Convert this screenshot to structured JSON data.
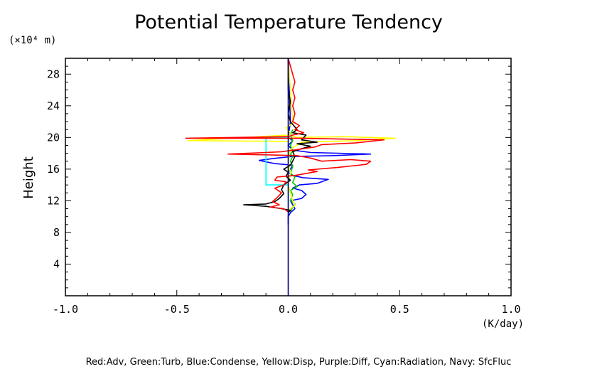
{
  "chart_data": {
    "type": "line",
    "title": "Potential Temperature Tendency",
    "xlabel": "(K/day)",
    "ylabel": "Height",
    "y_unit": "(×10⁴ m)",
    "xlim": [
      -1.0,
      1.0
    ],
    "ylim": [
      0,
      30
    ],
    "x_ticks": [
      -1.0,
      -0.5,
      0.0,
      0.5,
      1.0
    ],
    "x_tick_labels": [
      "-1.0",
      "-0.5",
      "0.0",
      "0.5",
      "1.0"
    ],
    "y_ticks": [
      4,
      8,
      12,
      16,
      20,
      24,
      28
    ],
    "y_tick_labels": [
      "4",
      "8",
      "12",
      "16",
      "20",
      "24",
      "28"
    ],
    "legend_text": "Red:Adv, Green:Turb, Blue:Condense, Yellow:Disp, Purple:Diff, Cyan:Radiation, Navy: SfcFluc",
    "grid": false,
    "series": [
      {
        "color": "#0000ff",
        "points": [
          [
            0,
            9
          ],
          [
            0,
            10
          ],
          [
            0.01,
            10.5
          ],
          [
            0.03,
            11
          ],
          [
            0.02,
            11.5
          ],
          [
            0.01,
            12
          ],
          [
            0.06,
            12.3
          ],
          [
            0.08,
            12.8
          ],
          [
            0.06,
            13.3
          ],
          [
            0.02,
            13.6
          ],
          [
            0.05,
            14
          ],
          [
            0.13,
            14.2
          ],
          [
            0.18,
            14.7
          ],
          [
            0.07,
            14.9
          ],
          [
            0.02,
            15.2
          ],
          [
            0,
            15.6
          ],
          [
            0.01,
            16
          ],
          [
            0.02,
            16.5
          ],
          [
            -0.06,
            16.7
          ],
          [
            -0.13,
            17.1
          ],
          [
            -0.05,
            17.4
          ],
          [
            0.02,
            17.6
          ],
          [
            0.2,
            17.7
          ],
          [
            0.37,
            17.9
          ],
          [
            0.1,
            18.1
          ],
          [
            0.02,
            18.4
          ],
          [
            0,
            19
          ],
          [
            0.02,
            19.6
          ],
          [
            0,
            20
          ],
          [
            0.01,
            22
          ],
          [
            0,
            30
          ]
        ]
      },
      {
        "color": "#00cd00",
        "points": [
          [
            0.01,
            10.6
          ],
          [
            0.02,
            11.2
          ],
          [
            0.03,
            11.6
          ],
          [
            0.01,
            12
          ],
          [
            0.02,
            12.8
          ],
          [
            0.01,
            13.3
          ],
          [
            0.04,
            13.8
          ],
          [
            0.02,
            14.3
          ],
          [
            0.03,
            15
          ],
          [
            0.01,
            15.5
          ],
          [
            0.02,
            16.3
          ],
          [
            0.01,
            17
          ],
          [
            0.02,
            17.6
          ],
          [
            0.01,
            17.9
          ],
          [
            0.02,
            18.3
          ],
          [
            0.01,
            19
          ],
          [
            0.02,
            19.6
          ],
          [
            0.01,
            20.3
          ],
          [
            0.02,
            21
          ]
        ]
      },
      {
        "color": "#ffff00",
        "points": [
          [
            0,
            10.6
          ],
          [
            0.01,
            11
          ],
          [
            0.03,
            11.4
          ],
          [
            0.02,
            12
          ],
          [
            0.01,
            13
          ],
          [
            0,
            14
          ],
          [
            0.01,
            15.5
          ],
          [
            0,
            17
          ],
          [
            0.01,
            18.5
          ],
          [
            0.06,
            19.4
          ],
          [
            0.3,
            19.6
          ],
          [
            0.48,
            19.9
          ],
          [
            0.25,
            20.1
          ],
          [
            0.04,
            20
          ],
          [
            0,
            20.3
          ],
          [
            -0.45,
            19.6
          ],
          [
            0,
            19.5
          ],
          [
            0.01,
            20.6
          ],
          [
            -0.01,
            21.2
          ],
          [
            0.02,
            21.8
          ],
          [
            0,
            30
          ]
        ]
      },
      {
        "color": "#00ffff",
        "points": [
          [
            0,
            14
          ],
          [
            -0.1,
            14
          ],
          [
            -0.1,
            20
          ],
          [
            -0.03,
            20
          ],
          [
            0,
            20
          ]
        ]
      },
      {
        "color": "#000000",
        "points": [
          [
            0,
            10.5
          ],
          [
            0.01,
            10.8
          ],
          [
            -0.03,
            11
          ],
          [
            -0.1,
            11.3
          ],
          [
            -0.2,
            11.5
          ],
          [
            -0.1,
            11.6
          ],
          [
            -0.06,
            11.9
          ],
          [
            -0.04,
            12.3
          ],
          [
            -0.02,
            12.9
          ],
          [
            -0.03,
            13.4
          ],
          [
            -0.02,
            14
          ],
          [
            0.01,
            14.6
          ],
          [
            -0.01,
            15.1
          ],
          [
            0,
            15.6
          ],
          [
            -0.02,
            16
          ],
          [
            0.01,
            16.5
          ],
          [
            0.02,
            17
          ],
          [
            0.03,
            17.6
          ],
          [
            0.02,
            18.2
          ],
          [
            0.05,
            18.5
          ],
          [
            0.1,
            18.9
          ],
          [
            0.04,
            19.2
          ],
          [
            0.13,
            19.4
          ],
          [
            0.06,
            19.7
          ],
          [
            0.08,
            20.3
          ],
          [
            0.02,
            20.6
          ],
          [
            0.04,
            21
          ],
          [
            0.01,
            22
          ],
          [
            0,
            23
          ],
          [
            0.01,
            24.5
          ],
          [
            0,
            26
          ],
          [
            0,
            30
          ]
        ]
      },
      {
        "color": "#ff0000",
        "points": [
          [
            0,
            10.6
          ],
          [
            -0.02,
            11
          ],
          [
            -0.08,
            11.2
          ],
          [
            -0.04,
            11.5
          ],
          [
            -0.07,
            11.9
          ],
          [
            -0.05,
            12.4
          ],
          [
            -0.03,
            13
          ],
          [
            -0.06,
            13.6
          ],
          [
            -0.02,
            14
          ],
          [
            -0.01,
            14.4
          ],
          [
            -0.06,
            14.6
          ],
          [
            -0.05,
            15
          ],
          [
            0.03,
            15.2
          ],
          [
            0.13,
            15.7
          ],
          [
            0.09,
            15.9
          ],
          [
            0.22,
            16.2
          ],
          [
            0.35,
            16.6
          ],
          [
            0.37,
            17
          ],
          [
            0.28,
            17.2
          ],
          [
            0.15,
            17
          ],
          [
            0.1,
            17.4
          ],
          [
            0.04,
            17.7
          ],
          [
            -0.1,
            17.8
          ],
          [
            -0.27,
            17.9
          ],
          [
            -0.1,
            18.1
          ],
          [
            -0.03,
            18.2
          ],
          [
            0.05,
            18.5
          ],
          [
            0.12,
            18.8
          ],
          [
            0.15,
            19.1
          ],
          [
            0.3,
            19.3
          ],
          [
            0.43,
            19.7
          ],
          [
            0.05,
            19.9
          ],
          [
            -0.46,
            19.9
          ],
          [
            0,
            20.1
          ],
          [
            0.02,
            20.3
          ],
          [
            0.07,
            20.6
          ],
          [
            0.03,
            21
          ],
          [
            0.05,
            21.5
          ],
          [
            0.02,
            22
          ],
          [
            0.03,
            23
          ],
          [
            0.02,
            24
          ],
          [
            0.03,
            25
          ],
          [
            0.02,
            26
          ],
          [
            0.03,
            27
          ],
          [
            0.02,
            28
          ],
          [
            0.01,
            29
          ],
          [
            0,
            30
          ]
        ]
      },
      {
        "color": "#000080",
        "points": [
          [
            0,
            0
          ],
          [
            0,
            30
          ]
        ]
      }
    ]
  }
}
